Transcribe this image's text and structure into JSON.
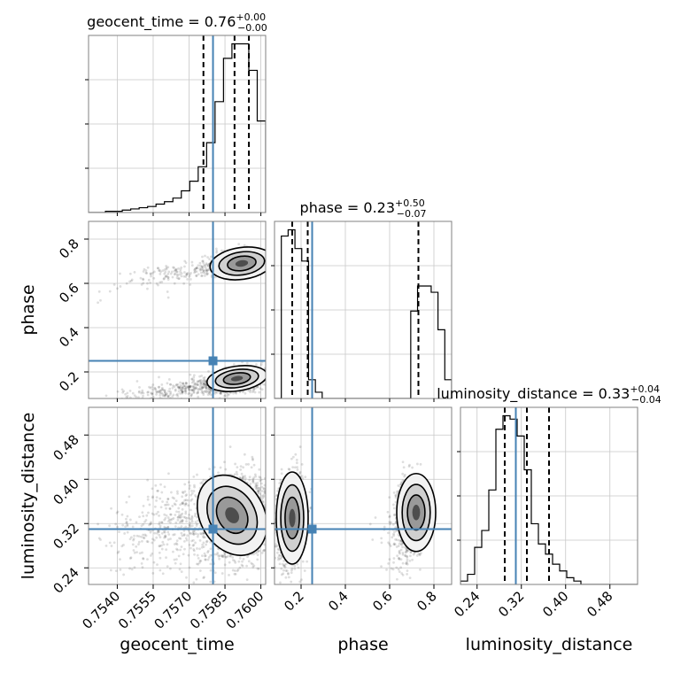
{
  "chart_data": {
    "type": "corner",
    "parameters": [
      {
        "name": "geocent_time",
        "label": "geocent_time",
        "median": "0.76",
        "plus": "+0.00",
        "minus": "−0.00",
        "range": [
          0.7528,
          0.7602
        ],
        "ticks": [
          0.754,
          0.7555,
          0.757,
          0.7585,
          0.76
        ],
        "tick_labels": [
          "0.7540",
          "0.7555",
          "0.7570",
          "0.7585",
          "0.7600"
        ],
        "quantiles": [
          0.7576,
          0.7589,
          0.7595
        ],
        "truth": 0.758
      },
      {
        "name": "phase",
        "label": "phase",
        "median": "0.23",
        "plus": "+0.50",
        "minus": "−0.07",
        "range": [
          0.08,
          0.88
        ],
        "ticks": [
          0.2,
          0.4,
          0.6,
          0.8
        ],
        "tick_labels": [
          "0.2",
          "0.4",
          "0.6",
          "0.8"
        ],
        "quantiles": [
          0.16,
          0.23,
          0.73
        ],
        "truth": 0.25
      },
      {
        "name": "luminosity_distance",
        "label": "luminosity_distance",
        "median": "0.33",
        "plus": "+0.04",
        "minus": "−0.04",
        "range": [
          0.21,
          0.53
        ],
        "ticks": [
          0.24,
          0.32,
          0.4,
          0.48
        ],
        "tick_labels": [
          "0.24",
          "0.32",
          "0.40",
          "0.48"
        ],
        "quantiles": [
          0.29,
          0.33,
          0.37
        ],
        "truth": 0.31
      }
    ],
    "hist_1d": [
      [
        0,
        0,
        1,
        1,
        2,
        3,
        4,
        5,
        7,
        9,
        12,
        18,
        26,
        38,
        58,
        92,
        128,
        140,
        140,
        118,
        76
      ],
      [
        0,
        26,
        27,
        24,
        22,
        3,
        1,
        0,
        0,
        0,
        0,
        0,
        0,
        0,
        0,
        0,
        0,
        0,
        0,
        0,
        14,
        18,
        18,
        17,
        11,
        3
      ],
      [
        1,
        3,
        11,
        16,
        28,
        46,
        50,
        49,
        44,
        34,
        18,
        12,
        9,
        6,
        4,
        2,
        1,
        0,
        0,
        0,
        0,
        0,
        0,
        0,
        0
      ]
    ],
    "style": {
      "truth_color": "#4682b4",
      "hist_color": "#000000",
      "grid": true
    }
  }
}
